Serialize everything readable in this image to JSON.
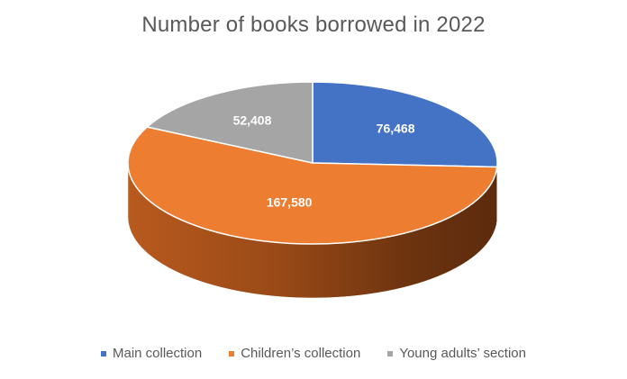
{
  "chart_data": {
    "type": "pie",
    "title": "Number of books borrowed in 2022",
    "categories": [
      "Main collection",
      "Children’s collection",
      "Young adults’ section"
    ],
    "values": [
      76468,
      167580,
      52408
    ],
    "value_labels": [
      "76,468",
      "167,580",
      "52,408"
    ],
    "colors": [
      "#4472C4",
      "#ED7D31",
      "#A5A5A5"
    ],
    "legend_position": "bottom",
    "style": "3d"
  }
}
